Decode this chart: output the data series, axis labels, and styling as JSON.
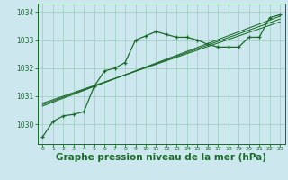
{
  "bg_color": "#cce8ee",
  "plot_bg_color": "#cce8ee",
  "grid_color": "#99ccbb",
  "line_color": "#1a6b2a",
  "marker_color": "#1a6b2a",
  "xlabel": "Graphe pression niveau de la mer (hPa)",
  "xlabel_fontsize": 7.5,
  "ylabel_fontsize": 6.5,
  "title": "",
  "xlim": [
    -0.5,
    23.5
  ],
  "ylim": [
    1029.3,
    1034.3
  ],
  "yticks": [
    1030,
    1031,
    1032,
    1033,
    1034
  ],
  "xticks": [
    0,
    1,
    2,
    3,
    4,
    5,
    6,
    7,
    8,
    9,
    10,
    11,
    12,
    13,
    14,
    15,
    16,
    17,
    18,
    19,
    20,
    21,
    22,
    23
  ],
  "series1_x": [
    0,
    1,
    2,
    3,
    4,
    5,
    6,
    7,
    8,
    9,
    10,
    11,
    12,
    13,
    14,
    15,
    16,
    17,
    18,
    19,
    20,
    21,
    22,
    23
  ],
  "series1_y": [
    1029.55,
    1030.1,
    1030.3,
    1030.35,
    1030.45,
    1031.35,
    1031.9,
    1032.0,
    1032.2,
    1033.0,
    1033.15,
    1033.3,
    1033.2,
    1033.1,
    1033.1,
    1033.0,
    1032.85,
    1032.75,
    1032.75,
    1032.75,
    1033.1,
    1033.1,
    1033.8,
    1033.9
  ],
  "line2_x": [
    0,
    23
  ],
  "line2_y": [
    1030.65,
    1033.85
  ],
  "line3_x": [
    0,
    23
  ],
  "line3_y": [
    1030.75,
    1033.65
  ],
  "line4_x": [
    0,
    23
  ],
  "line4_y": [
    1030.7,
    1033.75
  ]
}
